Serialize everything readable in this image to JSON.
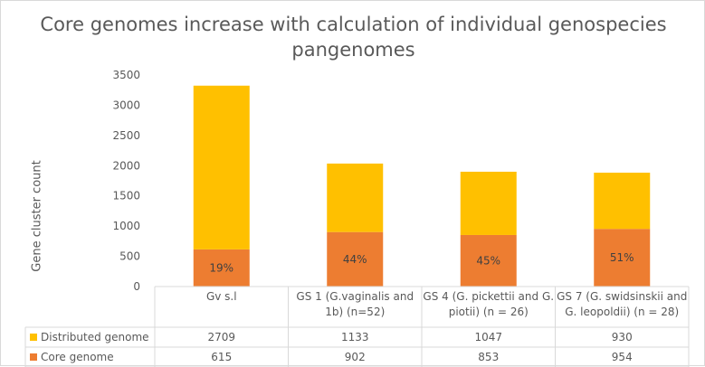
{
  "chart_data": {
    "type": "bar",
    "stacked": true,
    "title_lines": [
      "Core genomes increase with calculation of individual genospecies",
      "pangenomes"
    ],
    "ylabel": "Gene cluster count",
    "ylim": [
      0,
      3500
    ],
    "yticks": [
      0,
      500,
      1000,
      1500,
      2000,
      2500,
      3000,
      3500
    ],
    "grid": false,
    "categories": [
      [
        "Gv s.l"
      ],
      [
        "GS 1 (G.vaginalis and",
        "1b) (n=52)"
      ],
      [
        "GS 4 (G. pickettii and G.",
        "piotii) (n = 26)"
      ],
      [
        "GS 7 (G. swidsinskii and",
        "G. leopoldii) (n = 28)"
      ]
    ],
    "series": [
      {
        "name": "Core genome",
        "color": "#ED7D31",
        "values": [
          615,
          902,
          853,
          954
        ]
      },
      {
        "name": "Distributed genome",
        "color": "#FFC000",
        "values": [
          2709,
          1133,
          1047,
          930
        ]
      }
    ],
    "bar_labels": [
      "19%",
      "44%",
      "45%",
      "51%"
    ],
    "data_table": true
  }
}
